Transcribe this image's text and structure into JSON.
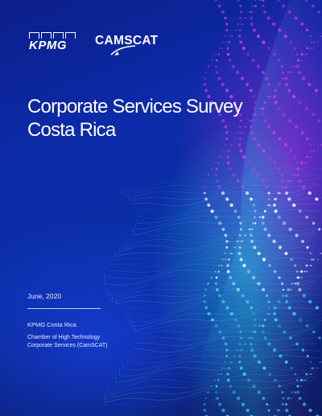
{
  "cover": {
    "logos": {
      "kpmg": "KPMG",
      "camscat": "CAMSCAT"
    },
    "title_lines": [
      "Corporate Services Survey",
      "Costa Rica"
    ],
    "date": "June, 2020",
    "organization": "KPMG Costa Rica",
    "chamber_lines": [
      "Chamber of High Technology",
      "Corporate Services (CamSCAT)"
    ]
  },
  "colors": {
    "background_primary": "#0d2aa8",
    "accent_magenta": "#d23ef0",
    "accent_cyan": "#3fd6f2",
    "text": "#ffffff"
  }
}
